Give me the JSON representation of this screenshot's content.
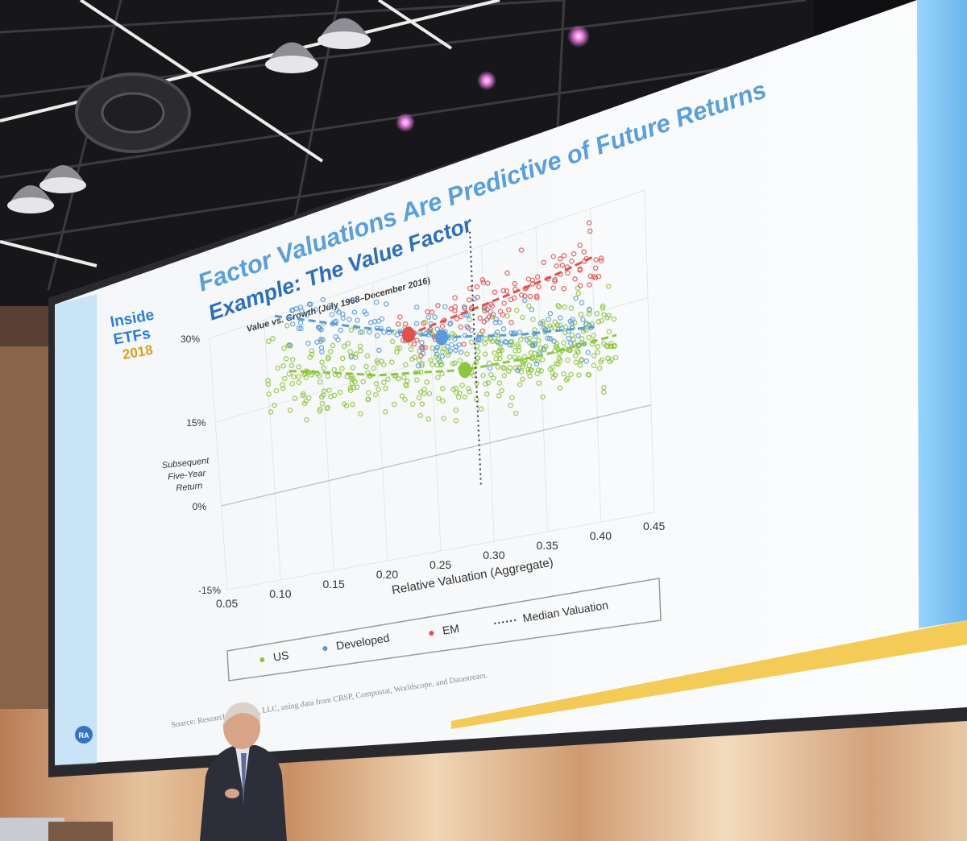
{
  "event": {
    "brand_line1": "Inside",
    "brand_line2": "ETFs",
    "year": "2018"
  },
  "slide": {
    "title": "Factor Valuations Are Predictive of Future Returns",
    "subtitle": "Example: The Value Factor",
    "source": "Source: Research Affiliates, LLC, using data from CRSP, Compustat, Worldscope, and Datastream.",
    "logo": "RA"
  },
  "chart_data": {
    "type": "scatter",
    "title": "Value vs. Growth (July 1968–December 2016)",
    "xlabel": "Relative Valuation (Aggregate)",
    "ylabel_lines": [
      "Subsequent",
      "Five-Year",
      "Return"
    ],
    "x_ticks": [
      "0.05",
      "0.10",
      "0.15",
      "0.20",
      "0.25",
      "0.30",
      "0.35",
      "0.40",
      "0.45"
    ],
    "y_ticks": [
      "-15%",
      "0%",
      "15%",
      "30%"
    ],
    "xlim": [
      0.05,
      0.45
    ],
    "ylim": [
      -0.15,
      0.3
    ],
    "median_valuation": 0.29,
    "series": [
      {
        "name": "US",
        "color": "#8dc63f",
        "center": {
          "x": 0.28,
          "y": 0.12
        },
        "trend": [
          [
            0.12,
            0.2
          ],
          [
            0.2,
            0.15
          ],
          [
            0.28,
            0.12
          ],
          [
            0.35,
            0.11
          ],
          [
            0.42,
            0.11
          ]
        ]
      },
      {
        "name": "Developed",
        "color": "#5b9bd5",
        "center": {
          "x": 0.26,
          "y": 0.18
        },
        "trend": [
          [
            0.11,
            0.3
          ],
          [
            0.18,
            0.24
          ],
          [
            0.26,
            0.18
          ],
          [
            0.33,
            0.15
          ],
          [
            0.4,
            0.13
          ]
        ]
      },
      {
        "name": "EM",
        "color": "#e0514b",
        "center": {
          "x": 0.23,
          "y": 0.2
        },
        "trend": [
          [
            0.23,
            0.2
          ],
          [
            0.3,
            0.21
          ],
          [
            0.36,
            0.22
          ],
          [
            0.4,
            0.23
          ]
        ]
      }
    ],
    "legend": {
      "position": "bottom",
      "entries": [
        "US",
        "Developed",
        "EM",
        "Median Valuation"
      ]
    }
  }
}
